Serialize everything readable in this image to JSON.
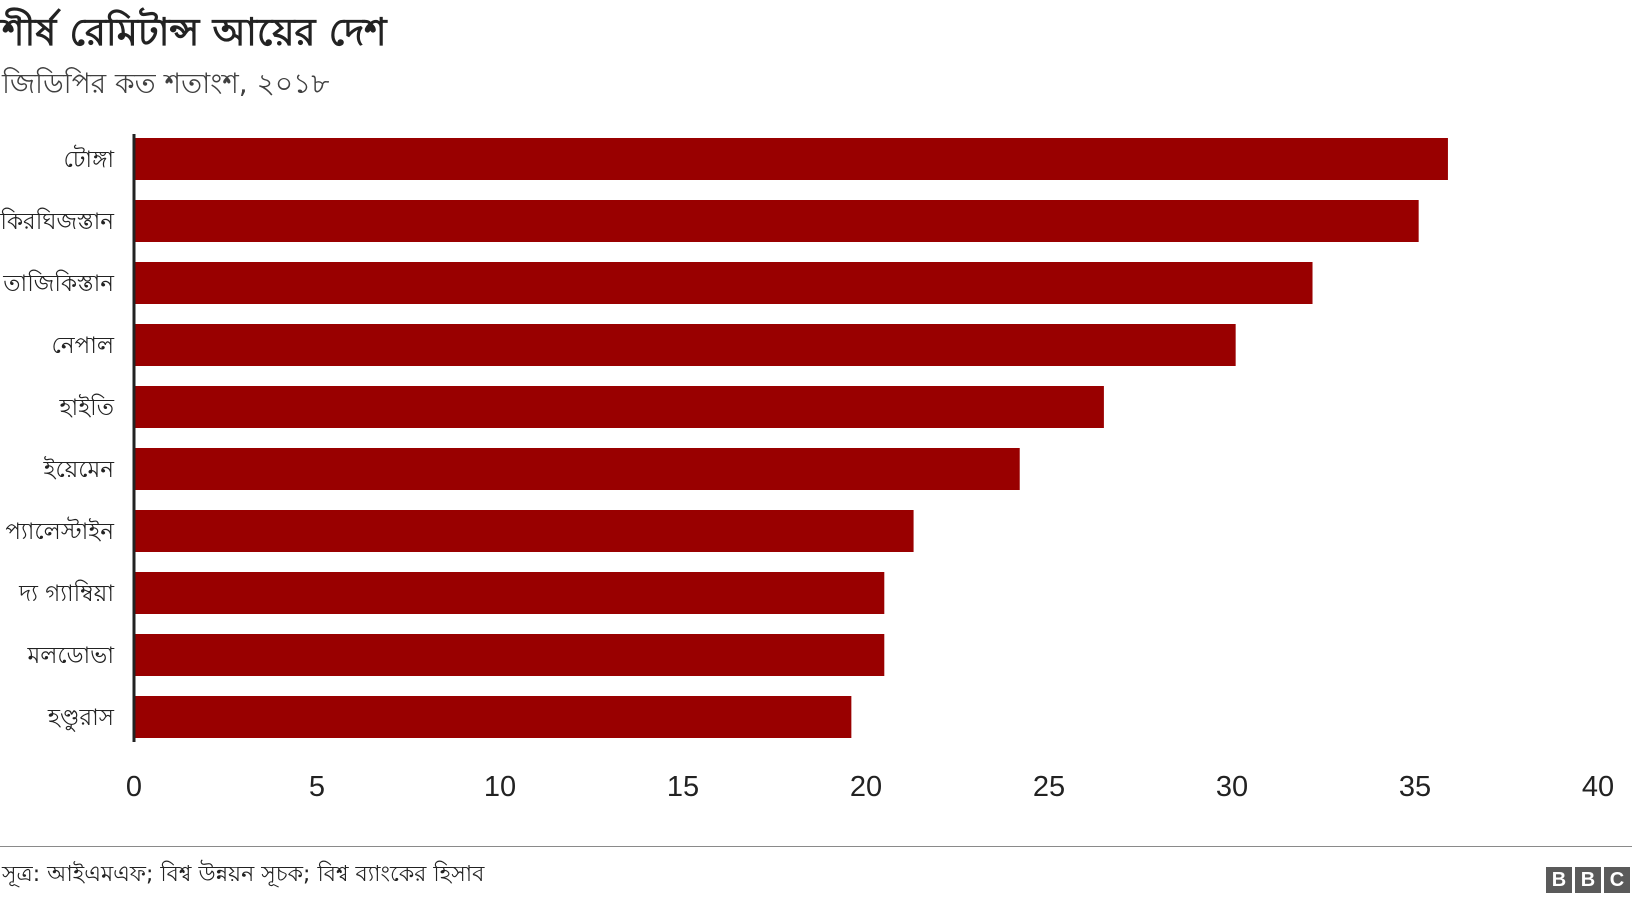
{
  "chart_data": {
    "type": "bar",
    "orientation": "horizontal",
    "title": "শীর্ষ রেমিটান্স আয়ের দেশ",
    "subtitle": "জিডিপির কত শতাংশ, ২০১৮",
    "categories": [
      "টোঙ্গা",
      "কিরঘিজস্তান",
      "তাজিকিস্তান",
      "নেপাল",
      "হাইতি",
      "ইয়েমেন",
      "প্যালেস্টাইন",
      "দ্য গ্যাম্বিয়া",
      "মলডোভা",
      "হণ্ডুরাস"
    ],
    "values": [
      35.9,
      35.1,
      32.2,
      30.1,
      26.5,
      24.2,
      21.3,
      20.5,
      20.5,
      19.6
    ],
    "xlim": [
      0,
      40
    ],
    "xticks": [
      "0",
      "5",
      "10",
      "15",
      "20",
      "25",
      "30",
      "35",
      "40"
    ],
    "grid": false,
    "bar_color": "#990000"
  },
  "source": "সূত্র: আইএমএফ; বিশ্ব উন্নয়ন সূচক; বিশ্ব ব্যাংকের হিসাব",
  "logo": [
    "B",
    "B",
    "C"
  ]
}
